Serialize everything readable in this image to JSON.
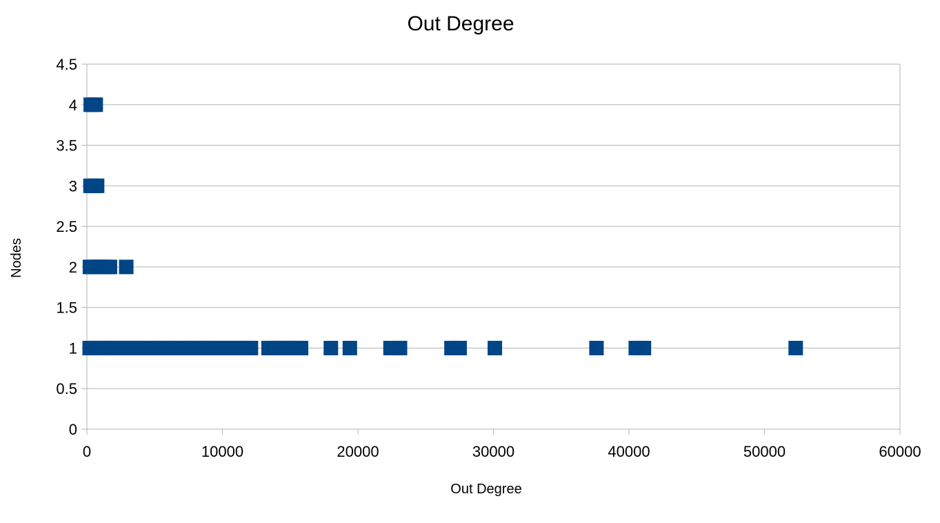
{
  "chart_data": {
    "type": "scatter",
    "title": "Out Degree",
    "xlabel": "Out Degree",
    "ylabel": "Nodes",
    "xlim": [
      0,
      60000
    ],
    "ylim": [
      0,
      4.5
    ],
    "x_ticks": [
      "0",
      "10000",
      "20000",
      "30000",
      "40000",
      "50000",
      "60000"
    ],
    "y_ticks": [
      "0",
      "0.5",
      "1",
      "1.5",
      "2",
      "2.5",
      "3",
      "3.5",
      "4",
      "4.5"
    ],
    "grid": true,
    "legend": "none",
    "marker": "square",
    "series": [
      {
        "color": "#004586",
        "points": [
          [
            80,
            4
          ],
          [
            250,
            4
          ],
          [
            450,
            4
          ],
          [
            60,
            3
          ],
          [
            200,
            3
          ],
          [
            400,
            3
          ],
          [
            550,
            3
          ],
          [
            20,
            2
          ],
          [
            150,
            2
          ],
          [
            320,
            2
          ],
          [
            500,
            2
          ],
          [
            700,
            2
          ],
          [
            900,
            2
          ],
          [
            1100,
            2
          ],
          [
            1300,
            2
          ],
          [
            1500,
            2
          ],
          [
            2700,
            2
          ],
          [
            0,
            1
          ],
          [
            300,
            1
          ],
          [
            600,
            1
          ],
          [
            900,
            1
          ],
          [
            1200,
            1
          ],
          [
            1500,
            1
          ],
          [
            1800,
            1
          ],
          [
            2100,
            1
          ],
          [
            2400,
            1
          ],
          [
            2700,
            1
          ],
          [
            3000,
            1
          ],
          [
            3300,
            1
          ],
          [
            3600,
            1
          ],
          [
            3900,
            1
          ],
          [
            4300,
            1
          ],
          [
            4700,
            1
          ],
          [
            5100,
            1
          ],
          [
            5500,
            1
          ],
          [
            5900,
            1
          ],
          [
            6300,
            1
          ],
          [
            6700,
            1
          ],
          [
            7100,
            1
          ],
          [
            7500,
            1
          ],
          [
            7900,
            1
          ],
          [
            8300,
            1
          ],
          [
            8700,
            1
          ],
          [
            9100,
            1
          ],
          [
            9500,
            1
          ],
          [
            9900,
            1
          ],
          [
            10300,
            1
          ],
          [
            10700,
            1
          ],
          [
            11100,
            1
          ],
          [
            11500,
            1
          ],
          [
            11900,
            1
          ],
          [
            13200,
            1
          ],
          [
            13600,
            1
          ],
          [
            14000,
            1
          ],
          [
            14400,
            1
          ],
          [
            14800,
            1
          ],
          [
            15200,
            1
          ],
          [
            15600,
            1
          ],
          [
            17800,
            1
          ],
          [
            19200,
            1
          ],
          [
            22200,
            1
          ],
          [
            22900,
            1
          ],
          [
            26700,
            1
          ],
          [
            27300,
            1
          ],
          [
            29900,
            1
          ],
          [
            37400,
            1
          ],
          [
            40300,
            1
          ],
          [
            40900,
            1
          ],
          [
            52100,
            1
          ]
        ]
      }
    ]
  }
}
